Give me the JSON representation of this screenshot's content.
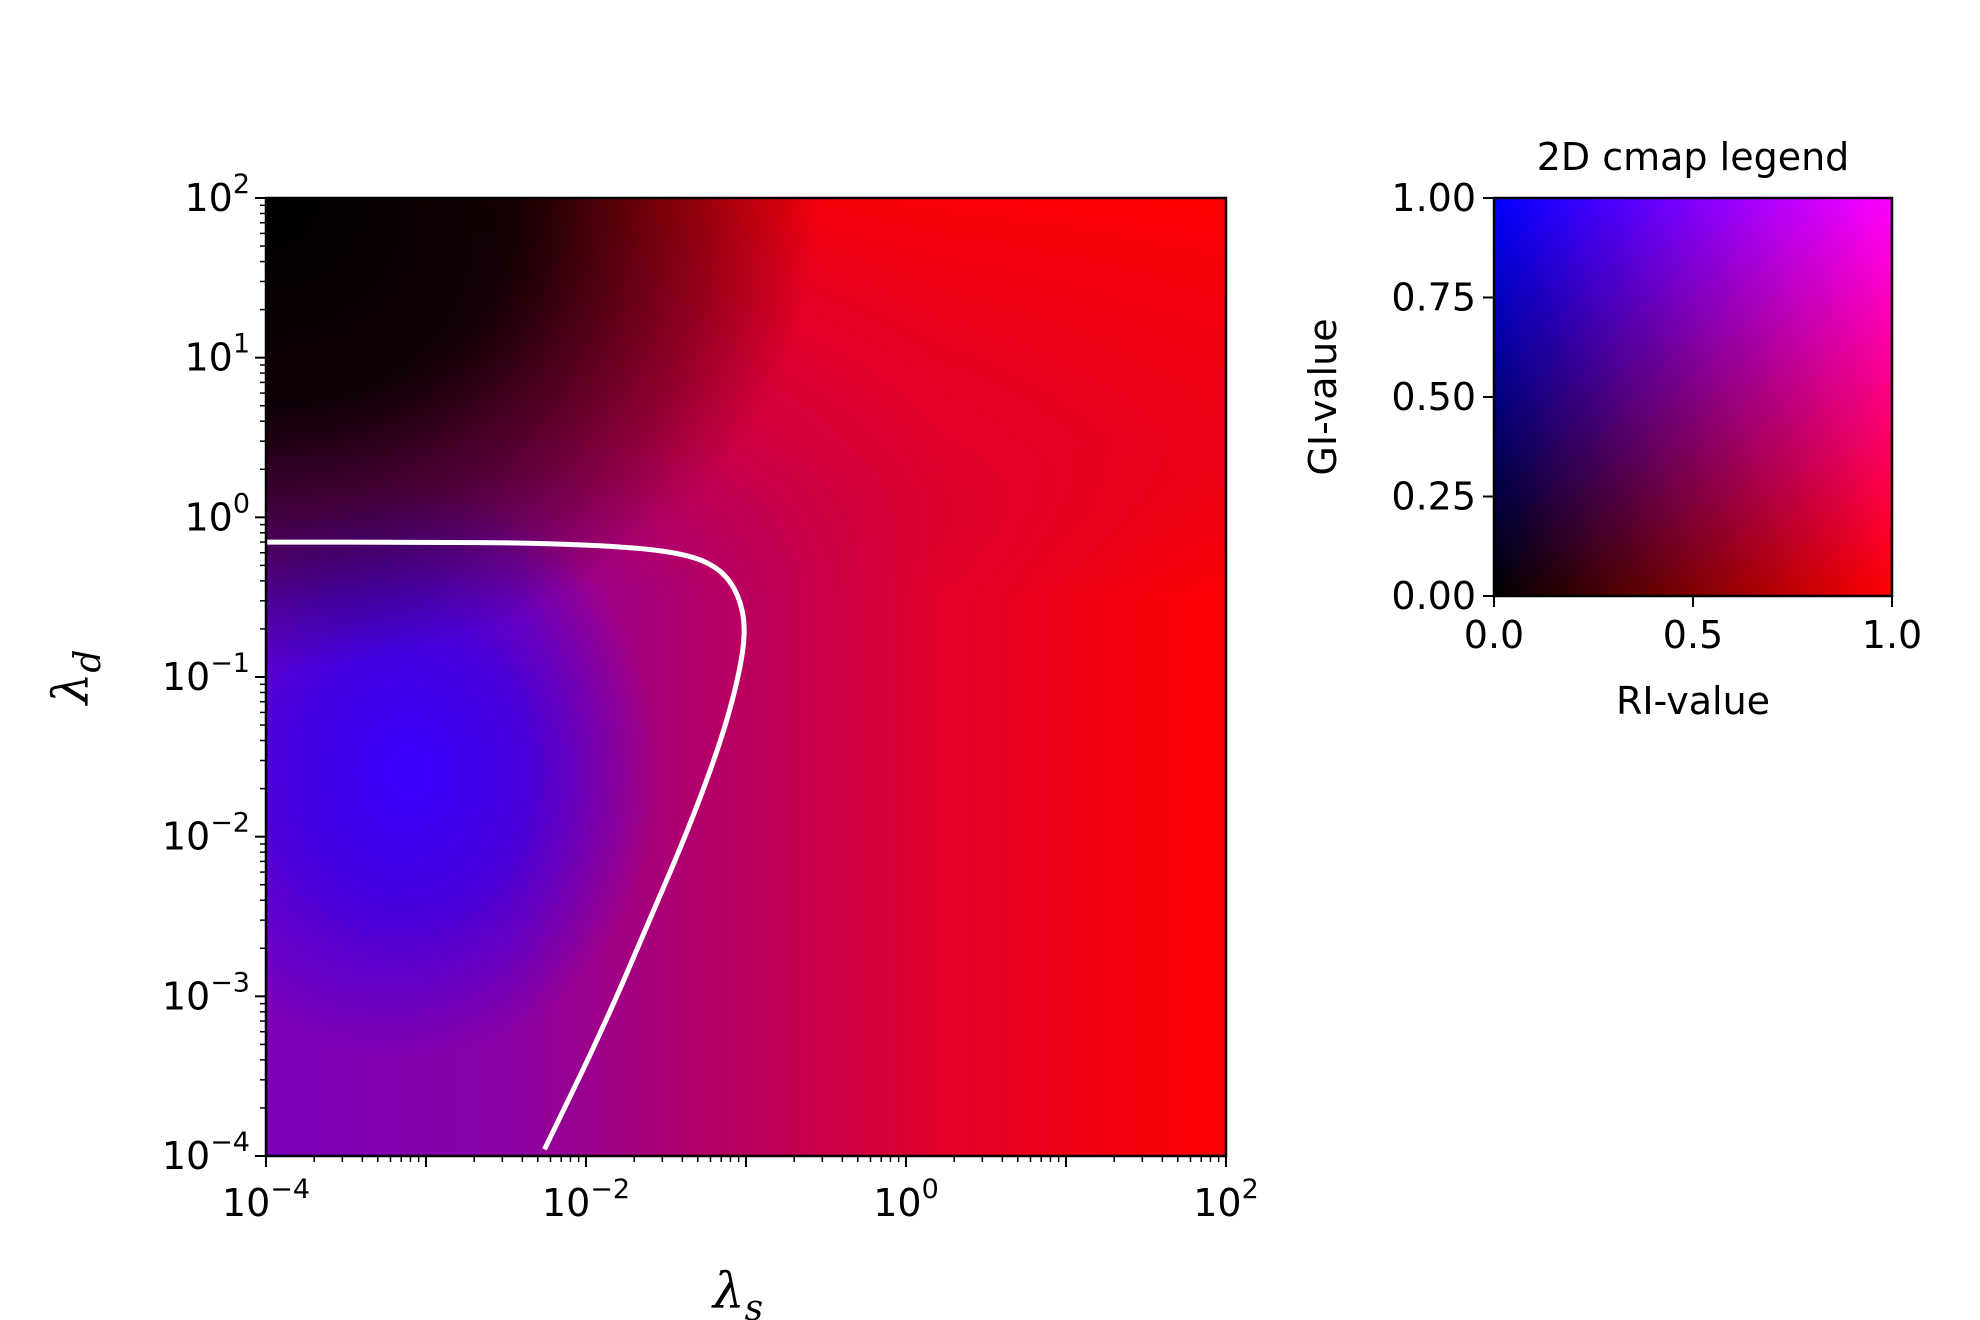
{
  "chart_data": [
    {
      "type": "heatmap",
      "title": "",
      "xlabel": "λ",
      "xlabel_sub": "s",
      "ylabel": "λ",
      "ylabel_sub": "d",
      "x_scale": "log",
      "y_scale": "log",
      "xlim": [
        0.0001,
        100
      ],
      "ylim": [
        0.0001,
        100
      ],
      "x_ticks": [
        {
          "value": 0.0001,
          "base": "10",
          "exp": "−4"
        },
        {
          "value": 0.01,
          "base": "10",
          "exp": "−2"
        },
        {
          "value": 1,
          "base": "10",
          "exp": "0"
        },
        {
          "value": 100,
          "base": "10",
          "exp": "2"
        }
      ],
      "y_ticks": [
        {
          "value": 0.0001,
          "base": "10",
          "exp": "−4"
        },
        {
          "value": 0.001,
          "base": "10",
          "exp": "−3"
        },
        {
          "value": 0.01,
          "base": "10",
          "exp": "−2"
        },
        {
          "value": 0.1,
          "base": "10",
          "exp": "−1"
        },
        {
          "value": 1,
          "base": "10",
          "exp": "0"
        },
        {
          "value": 10,
          "base": "10",
          "exp": "1"
        },
        {
          "value": 100,
          "base": "10",
          "exp": "2"
        }
      ],
      "grid": false,
      "legend": "none",
      "colormap": "2D: red channel = RI-value, blue channel = GI-value",
      "color_channels": {
        "red": "#ff0000",
        "blue": "#0000ff",
        "magenta": "#ff00ff",
        "black": "#000000"
      },
      "boundary_curve": {
        "color": "#ffffff",
        "points": [
          [
            0.0001,
            0.7
          ],
          [
            0.001,
            0.7
          ],
          [
            0.005,
            0.69
          ],
          [
            0.02,
            0.65
          ],
          [
            0.045,
            0.58
          ],
          [
            0.07,
            0.47
          ],
          [
            0.09,
            0.33
          ],
          [
            0.1,
            0.2
          ],
          [
            0.09,
            0.1
          ],
          [
            0.07,
            0.04
          ],
          [
            0.045,
            0.012
          ],
          [
            0.025,
            0.003
          ],
          [
            0.0125,
            0.0006
          ],
          [
            0.0055,
            0.00011
          ]
        ]
      }
    },
    {
      "type": "heatmap",
      "title": "2D cmap legend",
      "xlabel": "RI-value",
      "ylabel": "GI-value",
      "xlim": [
        0,
        1
      ],
      "ylim": [
        0,
        1
      ],
      "x_ticks": [
        "0.0",
        "0.5",
        "1.0"
      ],
      "y_ticks": [
        "0.00",
        "0.25",
        "0.50",
        "0.75",
        "1.00"
      ],
      "grid": false,
      "legend": "none",
      "corner_colors": {
        "bottom-left": "#000000",
        "bottom-right": "#ff0000",
        "top-left": "#0000ff",
        "top-right": "#ff00ff"
      }
    }
  ]
}
